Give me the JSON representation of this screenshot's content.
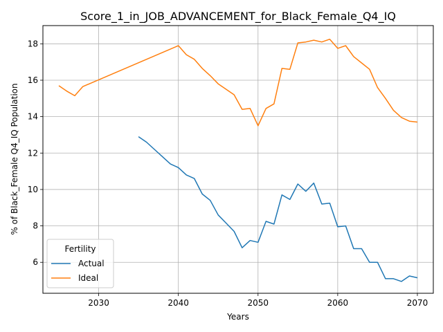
{
  "chart_data": {
    "type": "line",
    "title": "Score_1_in_JOB_ADVANCEMENT_for_Black_Female_Q4_IQ",
    "xlabel": "Years",
    "ylabel": "% of Black_Female Q4_IQ Population",
    "xlim": [
      2023,
      2072
    ],
    "ylim": [
      4.3,
      19.0
    ],
    "xticks": [
      2030,
      2040,
      2050,
      2060,
      2070
    ],
    "yticks": [
      6,
      8,
      10,
      12,
      14,
      16,
      18
    ],
    "grid": true,
    "legend": {
      "title": "Fertility",
      "placement": "lower-left"
    },
    "series": [
      {
        "name": "Actual",
        "color": "#1f77b4",
        "x": [
          2035,
          2036,
          2037,
          2038,
          2039,
          2040,
          2041,
          2042,
          2043,
          2044,
          2045,
          2046,
          2047,
          2048,
          2049,
          2050,
          2051,
          2052,
          2053,
          2054,
          2055,
          2056,
          2057,
          2058,
          2059,
          2060,
          2061,
          2062,
          2063,
          2064,
          2065,
          2066,
          2067,
          2068,
          2069,
          2070
        ],
        "y": [
          12.9,
          12.6,
          12.2,
          11.8,
          11.4,
          11.2,
          10.8,
          10.6,
          9.75,
          9.4,
          8.6,
          8.15,
          7.7,
          6.8,
          7.2,
          7.1,
          8.25,
          8.1,
          9.7,
          9.45,
          10.3,
          9.9,
          10.35,
          9.2,
          9.25,
          7.95,
          8.0,
          6.75,
          6.75,
          6.0,
          6.0,
          5.1,
          5.1,
          4.95,
          5.25,
          5.15
        ]
      },
      {
        "name": "Ideal",
        "color": "#ff7f0e",
        "x": [
          2025,
          2026,
          2027,
          2028,
          2040,
          2041,
          2042,
          2043,
          2044,
          2045,
          2046,
          2047,
          2048,
          2049,
          2050,
          2051,
          2052,
          2053,
          2054,
          2055,
          2056,
          2057,
          2058,
          2059,
          2060,
          2061,
          2062,
          2063,
          2064,
          2065,
          2066,
          2067,
          2068,
          2069,
          2070
        ],
        "y": [
          15.7,
          15.4,
          15.15,
          15.65,
          17.9,
          17.4,
          17.15,
          16.65,
          16.25,
          15.8,
          15.5,
          15.2,
          14.4,
          14.45,
          13.5,
          14.45,
          14.7,
          16.65,
          16.6,
          18.05,
          18.1,
          18.2,
          18.1,
          18.25,
          17.75,
          17.9,
          17.3,
          16.95,
          16.6,
          15.6,
          15.0,
          14.35,
          13.95,
          13.75,
          13.7
        ]
      }
    ]
  }
}
